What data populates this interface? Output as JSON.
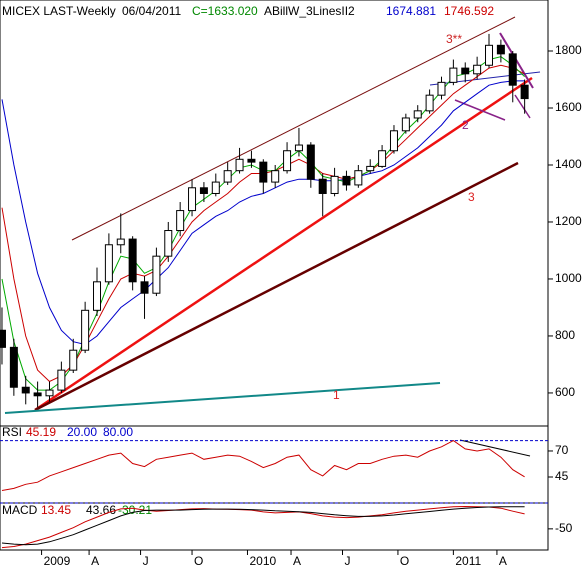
{
  "chart_data": [
    {
      "type": "candlestick",
      "title": "MICEX LAST-Weekly",
      "date": "06/04/2011",
      "close_label": "C=1633.020",
      "indicator": "ABillW_3LinesII2",
      "indicator_values": [
        "1674.881",
        "1746.592"
      ],
      "header_colors": [
        "#000000",
        "#000000",
        "#008800",
        "#000000",
        "#0000cc",
        "#cc0000"
      ],
      "x": [
        0,
        3,
        6,
        9,
        12,
        15,
        18,
        21,
        24,
        27,
        30,
        33,
        36,
        39,
        42,
        45,
        48,
        51,
        54,
        57,
        60,
        63,
        66,
        69,
        72,
        75,
        78,
        81,
        84,
        87,
        90,
        93,
        96,
        99,
        102,
        105,
        108,
        111,
        114,
        117,
        120,
        123,
        126,
        129,
        132
      ],
      "open": [
        820,
        760,
        620,
        600,
        590,
        610,
        680,
        750,
        890,
        990,
        1120,
        1140,
        990,
        950,
        1080,
        1170,
        1240,
        1320,
        1300,
        1340,
        1380,
        1420,
        1410,
        1340,
        1380,
        1450,
        1470,
        1350,
        1300,
        1360,
        1330,
        1380,
        1395,
        1450,
        1520,
        1565,
        1590,
        1645,
        1690,
        1740,
        1720,
        1750,
        1820,
        1790,
        1680
      ],
      "high": [
        900,
        790,
        660,
        640,
        640,
        710,
        790,
        920,
        1040,
        1160,
        1230,
        1150,
        1010,
        1110,
        1200,
        1270,
        1350,
        1340,
        1370,
        1410,
        1460,
        1450,
        1420,
        1400,
        1480,
        1530,
        1480,
        1370,
        1390,
        1380,
        1400,
        1420,
        1470,
        1540,
        1580,
        1610,
        1665,
        1710,
        1770,
        1760,
        1780,
        1860,
        1840,
        1800,
        1700
      ],
      "low": [
        700,
        590,
        560,
        550,
        570,
        600,
        670,
        740,
        870,
        980,
        1090,
        960,
        860,
        940,
        1060,
        1150,
        1220,
        1270,
        1290,
        1330,
        1370,
        1390,
        1300,
        1320,
        1370,
        1430,
        1320,
        1220,
        1290,
        1310,
        1320,
        1370,
        1390,
        1440,
        1510,
        1550,
        1580,
        1630,
        1680,
        1690,
        1700,
        1740,
        1760,
        1620,
        1580
      ],
      "close": [
        760,
        620,
        600,
        590,
        610,
        680,
        750,
        890,
        990,
        1120,
        1140,
        990,
        950,
        1080,
        1170,
        1240,
        1320,
        1300,
        1340,
        1380,
        1420,
        1410,
        1340,
        1380,
        1450,
        1470,
        1350,
        1300,
        1360,
        1330,
        1380,
        1395,
        1450,
        1520,
        1565,
        1590,
        1645,
        1690,
        1740,
        1720,
        1750,
        1820,
        1790,
        1680,
        1633
      ],
      "series": [
        {
          "color": "#0000cc",
          "values": [
            1630,
            1400,
            1200,
            1020,
            900,
            820,
            780,
            770,
            800,
            850,
            900,
            930,
            960,
            1000,
            1040,
            1100,
            1160,
            1190,
            1220,
            1240,
            1270,
            1290,
            1300,
            1320,
            1340,
            1350,
            1350,
            1345,
            1345,
            1350,
            1360,
            1370,
            1380,
            1400,
            1430,
            1460,
            1500,
            1540,
            1590,
            1620,
            1650,
            1680,
            1690,
            1695,
            1695
          ]
        },
        {
          "color": "#cc0000",
          "values": [
            1250,
            1000,
            800,
            680,
            640,
            660,
            700,
            770,
            850,
            930,
            1000,
            1020,
            1010,
            1030,
            1080,
            1140,
            1200,
            1240,
            1270,
            1300,
            1340,
            1370,
            1370,
            1380,
            1400,
            1420,
            1400,
            1370,
            1360,
            1350,
            1360,
            1380,
            1410,
            1450,
            1490,
            1530,
            1570,
            1610,
            1650,
            1680,
            1710,
            1740,
            1750,
            1740,
            1720
          ]
        },
        {
          "color": "#00aa00",
          "values": [
            1000,
            780,
            650,
            610,
            610,
            640,
            700,
            790,
            880,
            990,
            1080,
            1070,
            1020,
            1040,
            1100,
            1180,
            1250,
            1280,
            1310,
            1350,
            1390,
            1400,
            1380,
            1380,
            1420,
            1450,
            1410,
            1360,
            1350,
            1340,
            1360,
            1380,
            1420,
            1470,
            1520,
            1560,
            1610,
            1660,
            1710,
            1720,
            1740,
            1770,
            1780,
            1750,
            1710
          ]
        }
      ],
      "xlim": [
        -0.5,
        137.9
      ],
      "ylim": [
        484,
        1979
      ],
      "yticks": [
        600,
        800,
        1000,
        1200,
        1400,
        1600,
        1800
      ],
      "xticks": [
        {
          "value": 10,
          "label": "2009"
        },
        {
          "value": 22,
          "label": "A"
        },
        {
          "value": 35,
          "label": "J"
        },
        {
          "value": 48,
          "label": "O"
        },
        {
          "value": 62,
          "label": "2010"
        },
        {
          "value": 73,
          "label": "A"
        },
        {
          "value": 86,
          "label": "J"
        },
        {
          "value": 100,
          "label": "O"
        },
        {
          "value": 114,
          "label": "2011"
        },
        {
          "value": 125,
          "label": "A"
        }
      ],
      "annotations": [
        {
          "text": "3**",
          "color": "#cc2222"
        },
        {
          "text": "2",
          "color": "#882288"
        },
        {
          "text": "3",
          "color": "#dd2222"
        },
        {
          "text": "1",
          "color": "#dd2222"
        }
      ]
    },
    {
      "type": "line",
      "title": "RSI",
      "value_text": "45.19",
      "color": "#cc0000",
      "values": [
        32,
        34,
        38,
        40,
        46,
        50,
        54,
        58,
        62,
        66,
        68,
        58,
        55,
        62,
        64,
        66,
        68,
        62,
        64,
        66,
        65,
        60,
        54,
        58,
        64,
        66,
        52,
        46,
        56,
        52,
        58,
        58,
        62,
        65,
        66,
        64,
        70,
        74,
        80,
        72,
        70,
        72,
        64,
        52,
        45.19
      ],
      "levels": [
        {
          "value": 20,
          "label": "20.00"
        },
        {
          "value": 80,
          "label": "80.00"
        }
      ],
      "level_color": "#0000cc",
      "ylim": [
        20,
        94
      ],
      "yticks": [
        45,
        70
      ]
    },
    {
      "type": "line",
      "title": "MACD",
      "diff_label": "-30.21",
      "diff_color": "#008800",
      "series": [
        {
          "color": "#cc0000",
          "value_label": "13.45",
          "values": [
            -130,
            -125,
            -115,
            -100,
            -85,
            -65,
            -45,
            -20,
            0,
            20,
            35,
            38,
            30,
            25,
            28,
            32,
            35,
            36,
            34,
            33,
            32,
            30,
            22,
            18,
            20,
            22,
            15,
            5,
            0,
            -2,
            0,
            5,
            10,
            18,
            25,
            30,
            35,
            40,
            44,
            45,
            44,
            43,
            38,
            25,
            13.45
          ]
        },
        {
          "color": "#000000",
          "value_label": "43.66",
          "values": [
            -110,
            -115,
            -118,
            -115,
            -105,
            -90,
            -75,
            -55,
            -35,
            -15,
            5,
            20,
            28,
            30,
            30,
            30,
            32,
            33,
            34,
            34,
            33,
            32,
            30,
            27,
            25,
            23,
            20,
            15,
            10,
            6,
            3,
            3,
            5,
            9,
            14,
            19,
            24,
            29,
            34,
            38,
            41,
            43,
            44,
            44,
            43.66
          ]
        }
      ],
      "ylim": [
        -140,
        60
      ],
      "yticks": [
        -50
      ]
    }
  ]
}
